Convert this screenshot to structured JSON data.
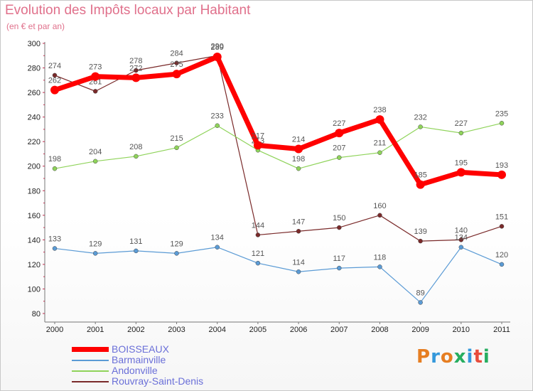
{
  "header": {
    "title": "Evolution des Impôts locaux par Habitant",
    "subtitle": "(en € et par an)"
  },
  "chart_data": {
    "type": "line",
    "title": "Evolution des Impôts locaux par Habitant",
    "subtitle": "(en € et par an)",
    "xlabel": "",
    "ylabel": "",
    "ylim": [
      80,
      300
    ],
    "yticks": [
      80,
      100,
      120,
      140,
      160,
      180,
      200,
      220,
      240,
      260,
      280,
      300
    ],
    "categories": [
      "2000",
      "2001",
      "2002",
      "2003",
      "2004",
      "2005",
      "2006",
      "2007",
      "2008",
      "2009",
      "2010",
      "2011"
    ],
    "grid": false,
    "legend_position": "bottom-left",
    "series": [
      {
        "name": "Rouvray-Saint-Denis",
        "color": "#7a2a2a",
        "values": [
          274,
          261,
          278,
          284,
          290,
          144,
          147,
          150,
          160,
          139,
          140,
          151
        ]
      },
      {
        "name": "Barmainville",
        "color": "#5b9bd5",
        "values": [
          133,
          129,
          131,
          129,
          134,
          121,
          114,
          117,
          118,
          89,
          134,
          120
        ]
      },
      {
        "name": "Andonville",
        "color": "#8fd35a",
        "values": [
          198,
          204,
          208,
          215,
          233,
          213,
          198,
          207,
          211,
          232,
          227,
          235
        ]
      },
      {
        "name": "BOISSEAUX",
        "color": "#ff0000",
        "values": [
          262,
          273,
          272,
          275,
          289,
          217,
          214,
          227,
          238,
          185,
          195,
          193
        ]
      }
    ]
  },
  "legend": {
    "items": [
      {
        "label": "BOISSEAUX",
        "color": "#ff0000"
      },
      {
        "label": "Barmainville",
        "color": "#5b9bd5"
      },
      {
        "label": "Andonville",
        "color": "#8fd35a"
      },
      {
        "label": "Rouvray-Saint-Denis",
        "color": "#7a2a2a"
      }
    ]
  },
  "logo": {
    "text": "Proxiti",
    "letters": [
      "P",
      "r",
      "o",
      "x",
      "i",
      "t",
      "i"
    ],
    "colors": [
      "#e67e22",
      "#3498db",
      "#e67e22",
      "#27ae60",
      "#3498db",
      "#e74c3c",
      "#27ae60"
    ]
  }
}
